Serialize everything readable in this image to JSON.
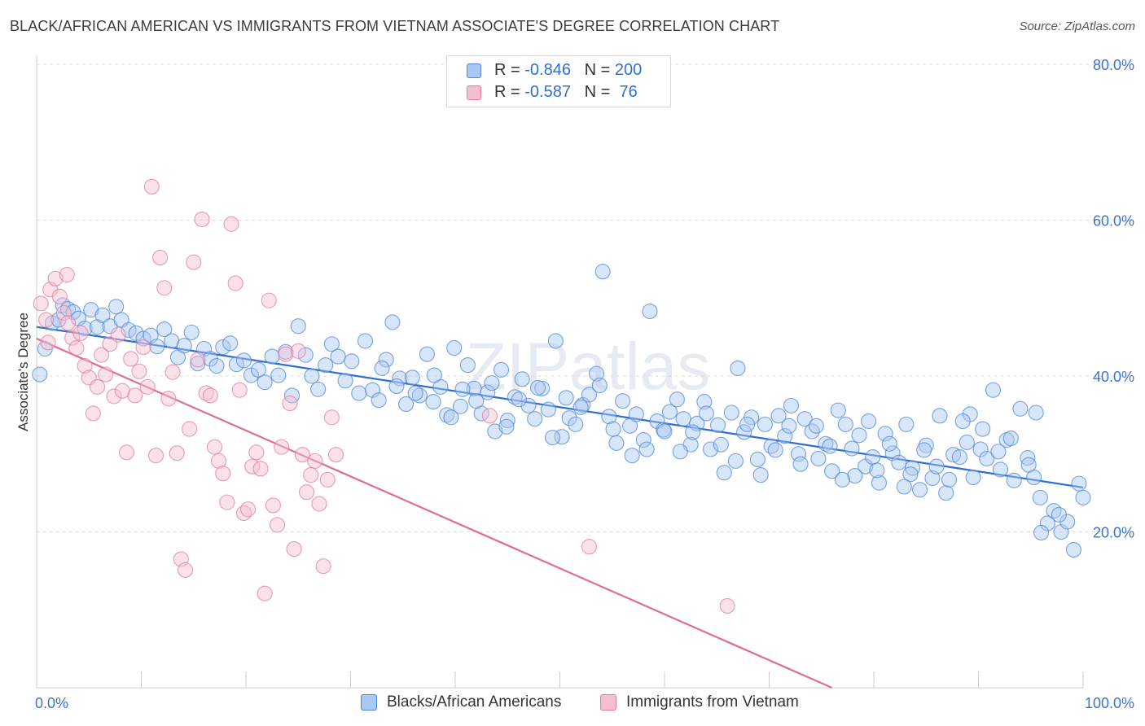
{
  "header": {
    "title": "BLACK/AFRICAN AMERICAN VS IMMIGRANTS FROM VIETNAM ASSOCIATE'S DEGREE CORRELATION CHART",
    "source": "Source: ZipAtlas.com"
  },
  "watermark": "ZIPatlas",
  "legend": {
    "rows": [
      {
        "r_label": "R = ",
        "r_value": "-0.846",
        "n_label": "N = ",
        "n_value": "200"
      },
      {
        "r_label": "R = ",
        "r_value": "-0.587",
        "n_label": "N = ",
        "n_value": " 76"
      }
    ]
  },
  "colors": {
    "blue": "#4f86d8",
    "blue_fill": "#a9c8f2",
    "blue_line": "#2f6fcf",
    "pink": "#e27c9c",
    "pink_fill": "#f6bfd0",
    "pink_line": "#e06c94",
    "tick_label": "#3d73cc",
    "grid": "#dddddd"
  },
  "chart_data": {
    "type": "scatter",
    "title": "BLACK/AFRICAN AMERICAN VS IMMIGRANTS FROM VIETNAM ASSOCIATE'S DEGREE CORRELATION CHART",
    "xlabel": "",
    "ylabel": "Associate's Degree",
    "xlim": [
      0,
      100
    ],
    "ylim": [
      0,
      80
    ],
    "x_tick_labels": [
      "0.0%",
      "100.0%"
    ],
    "y_ticks": [
      20,
      40,
      60,
      80
    ],
    "y_tick_labels": [
      "20.0%",
      "40.0%",
      "60.0%",
      "80.0%"
    ],
    "grid": true,
    "legend_position": "top-center",
    "series": [
      {
        "name": "Blacks/African Americans",
        "color": "#4f86d8",
        "trend": {
          "x": [
            0,
            100
          ],
          "y": [
            46.3,
            25.7
          ]
        },
        "points": [
          [
            0.3,
            40.2
          ],
          [
            0.8,
            43.5
          ],
          [
            1.5,
            46.8
          ],
          [
            2.1,
            47.2
          ],
          [
            2.5,
            49.1
          ],
          [
            3.0,
            48.6
          ],
          [
            3.5,
            48.2
          ],
          [
            4.0,
            47.4
          ],
          [
            4.6,
            46.1
          ],
          [
            5.2,
            48.5
          ],
          [
            5.8,
            46.3
          ],
          [
            6.3,
            47.8
          ],
          [
            7.0,
            46.4
          ],
          [
            7.6,
            48.9
          ],
          [
            8.1,
            47.2
          ],
          [
            8.8,
            45.9
          ],
          [
            9.5,
            45.5
          ],
          [
            10.2,
            44.8
          ],
          [
            10.9,
            45.2
          ],
          [
            11.5,
            43.8
          ],
          [
            12.2,
            46.0
          ],
          [
            12.9,
            44.5
          ],
          [
            13.5,
            42.4
          ],
          [
            14.1,
            43.9
          ],
          [
            14.8,
            45.6
          ],
          [
            15.4,
            41.6
          ],
          [
            16.0,
            43.5
          ],
          [
            16.6,
            42.2
          ],
          [
            17.2,
            41.3
          ],
          [
            17.8,
            43.7
          ],
          [
            18.5,
            44.2
          ],
          [
            19.1,
            41.5
          ],
          [
            19.8,
            42.0
          ],
          [
            20.5,
            40.1
          ],
          [
            21.2,
            40.8
          ],
          [
            21.8,
            39.2
          ],
          [
            22.5,
            42.5
          ],
          [
            23.1,
            40.1
          ],
          [
            23.8,
            43.1
          ],
          [
            24.4,
            37.5
          ],
          [
            25.0,
            46.4
          ],
          [
            25.7,
            42.7
          ],
          [
            26.3,
            40.0
          ],
          [
            26.9,
            38.3
          ],
          [
            27.6,
            41.4
          ],
          [
            28.2,
            44.1
          ],
          [
            28.8,
            42.5
          ],
          [
            29.5,
            39.4
          ],
          [
            30.1,
            41.9
          ],
          [
            30.8,
            37.8
          ],
          [
            31.4,
            44.5
          ],
          [
            32.1,
            38.2
          ],
          [
            32.7,
            36.9
          ],
          [
            33.4,
            42.1
          ],
          [
            34.0,
            46.9
          ],
          [
            34.7,
            39.7
          ],
          [
            35.3,
            36.4
          ],
          [
            35.9,
            39.8
          ],
          [
            36.6,
            37.5
          ],
          [
            37.3,
            42.8
          ],
          [
            37.9,
            36.7
          ],
          [
            38.6,
            38.6
          ],
          [
            39.2,
            35.0
          ],
          [
            39.9,
            43.6
          ],
          [
            40.5,
            36.1
          ],
          [
            41.2,
            41.4
          ],
          [
            41.8,
            38.4
          ],
          [
            42.5,
            35.2
          ],
          [
            43.1,
            37.9
          ],
          [
            43.8,
            32.9
          ],
          [
            44.4,
            40.8
          ],
          [
            45.0,
            34.3
          ],
          [
            45.7,
            37.3
          ],
          [
            46.4,
            39.6
          ],
          [
            47.0,
            36.2
          ],
          [
            47.6,
            34.5
          ],
          [
            48.3,
            38.4
          ],
          [
            48.9,
            35.7
          ],
          [
            49.6,
            44.5
          ],
          [
            50.2,
            32.2
          ],
          [
            50.9,
            34.6
          ],
          [
            51.5,
            33.8
          ],
          [
            52.2,
            36.3
          ],
          [
            52.8,
            37.6
          ],
          [
            53.5,
            40.3
          ],
          [
            54.1,
            53.4
          ],
          [
            54.7,
            34.8
          ],
          [
            55.4,
            31.4
          ],
          [
            56.0,
            36.8
          ],
          [
            56.7,
            33.6
          ],
          [
            57.3,
            35.1
          ],
          [
            58.0,
            31.8
          ],
          [
            58.6,
            48.3
          ],
          [
            59.3,
            34.2
          ],
          [
            59.9,
            33.1
          ],
          [
            60.5,
            35.4
          ],
          [
            61.2,
            37.0
          ],
          [
            61.8,
            34.5
          ],
          [
            62.5,
            31.2
          ],
          [
            63.1,
            33.9
          ],
          [
            63.8,
            36.7
          ],
          [
            64.4,
            30.6
          ],
          [
            65.1,
            33.7
          ],
          [
            65.7,
            27.6
          ],
          [
            66.4,
            35.3
          ],
          [
            67.0,
            41.0
          ],
          [
            67.6,
            32.8
          ],
          [
            68.3,
            34.7
          ],
          [
            68.9,
            29.3
          ],
          [
            69.6,
            33.8
          ],
          [
            70.2,
            31.0
          ],
          [
            70.9,
            34.9
          ],
          [
            71.5,
            32.3
          ],
          [
            72.1,
            36.2
          ],
          [
            72.8,
            30.0
          ],
          [
            73.4,
            34.5
          ],
          [
            74.1,
            32.9
          ],
          [
            74.7,
            29.4
          ],
          [
            75.4,
            31.3
          ],
          [
            76.0,
            27.8
          ],
          [
            76.6,
            35.6
          ],
          [
            77.3,
            33.8
          ],
          [
            77.9,
            30.7
          ],
          [
            78.6,
            32.4
          ],
          [
            79.2,
            28.4
          ],
          [
            79.9,
            29.6
          ],
          [
            80.5,
            26.3
          ],
          [
            81.1,
            32.6
          ],
          [
            81.8,
            30.1
          ],
          [
            82.4,
            28.9
          ],
          [
            83.1,
            33.8
          ],
          [
            83.7,
            28.2
          ],
          [
            84.4,
            25.4
          ],
          [
            85.0,
            31.1
          ],
          [
            85.6,
            26.9
          ],
          [
            86.3,
            34.9
          ],
          [
            86.9,
            25.0
          ],
          [
            87.6,
            29.9
          ],
          [
            88.2,
            29.6
          ],
          [
            88.9,
            31.5
          ],
          [
            89.5,
            27.0
          ],
          [
            90.2,
            30.6
          ],
          [
            90.8,
            29.4
          ],
          [
            91.4,
            38.2
          ],
          [
            92.1,
            28.0
          ],
          [
            92.7,
            31.8
          ],
          [
            93.4,
            26.6
          ],
          [
            94.0,
            35.8
          ],
          [
            94.7,
            29.5
          ],
          [
            95.3,
            27.0
          ],
          [
            95.9,
            24.4
          ],
          [
            96.6,
            21.1
          ],
          [
            97.2,
            22.7
          ],
          [
            97.9,
            20.0
          ],
          [
            98.5,
            21.3
          ],
          [
            99.1,
            17.7
          ],
          [
            99.6,
            26.2
          ],
          [
            100.0,
            24.4
          ],
          [
            97.7,
            22.2
          ],
          [
            96.0,
            19.9
          ],
          [
            95.5,
            35.3
          ],
          [
            94.8,
            28.6
          ],
          [
            93.1,
            32.0
          ],
          [
            91.9,
            30.3
          ],
          [
            90.4,
            33.2
          ],
          [
            89.2,
            35.1
          ],
          [
            88.5,
            34.2
          ],
          [
            87.2,
            26.7
          ],
          [
            86.0,
            28.4
          ],
          [
            84.8,
            30.5
          ],
          [
            83.5,
            27.4
          ],
          [
            82.9,
            25.8
          ],
          [
            81.5,
            31.3
          ],
          [
            80.3,
            27.9
          ],
          [
            79.5,
            34.2
          ],
          [
            78.2,
            27.2
          ],
          [
            77.0,
            26.7
          ],
          [
            75.8,
            31.0
          ],
          [
            74.5,
            33.6
          ],
          [
            73.0,
            28.7
          ],
          [
            71.9,
            33.6
          ],
          [
            70.6,
            30.5
          ],
          [
            69.2,
            27.3
          ],
          [
            67.9,
            33.8
          ],
          [
            66.8,
            29.1
          ],
          [
            65.4,
            31.2
          ],
          [
            64.0,
            35.2
          ],
          [
            62.7,
            32.8
          ],
          [
            61.5,
            30.3
          ],
          [
            60.0,
            32.9
          ],
          [
            58.3,
            30.6
          ],
          [
            56.9,
            29.8
          ],
          [
            55.1,
            33.2
          ],
          [
            53.8,
            38.8
          ],
          [
            52.0,
            36.0
          ],
          [
            50.6,
            37.2
          ],
          [
            49.3,
            32.1
          ],
          [
            47.9,
            38.5
          ],
          [
            46.1,
            37.0
          ],
          [
            44.9,
            33.5
          ],
          [
            43.5,
            39.1
          ],
          [
            42.0,
            36.8
          ],
          [
            40.7,
            38.3
          ],
          [
            39.6,
            34.7
          ],
          [
            38.0,
            40.1
          ],
          [
            36.2,
            37.8
          ],
          [
            34.4,
            38.7
          ],
          [
            33.0,
            41.0
          ]
        ]
      },
      {
        "name": "Immigrants from Vietnam",
        "color": "#e27c9c",
        "trend": {
          "x": [
            0,
            76
          ],
          "y": [
            44.8,
            0
          ]
        },
        "points": [
          [
            0.4,
            49.3
          ],
          [
            0.9,
            47.2
          ],
          [
            1.3,
            51.1
          ],
          [
            1.8,
            52.5
          ],
          [
            2.2,
            50.2
          ],
          [
            2.6,
            48.1
          ],
          [
            3.0,
            46.8
          ],
          [
            3.4,
            44.9
          ],
          [
            3.8,
            43.6
          ],
          [
            4.2,
            45.5
          ],
          [
            4.6,
            41.3
          ],
          [
            5.0,
            39.8
          ],
          [
            5.4,
            35.2
          ],
          [
            5.8,
            38.6
          ],
          [
            6.2,
            42.7
          ],
          [
            6.6,
            40.2
          ],
          [
            7.0,
            44.1
          ],
          [
            7.4,
            37.4
          ],
          [
            7.8,
            45.3
          ],
          [
            8.2,
            38.1
          ],
          [
            8.6,
            30.2
          ],
          [
            9.0,
            42.2
          ],
          [
            9.4,
            37.5
          ],
          [
            9.8,
            40.6
          ],
          [
            10.2,
            43.7
          ],
          [
            10.6,
            38.6
          ],
          [
            11.0,
            64.3
          ],
          [
            11.4,
            29.8
          ],
          [
            11.8,
            55.2
          ],
          [
            12.2,
            51.3
          ],
          [
            12.6,
            37.1
          ],
          [
            13.0,
            40.5
          ],
          [
            13.4,
            30.1
          ],
          [
            13.8,
            16.5
          ],
          [
            14.2,
            15.1
          ],
          [
            14.6,
            33.2
          ],
          [
            15.0,
            54.6
          ],
          [
            15.4,
            42.1
          ],
          [
            15.8,
            60.1
          ],
          [
            16.2,
            37.8
          ],
          [
            16.6,
            37.5
          ],
          [
            17.0,
            30.9
          ],
          [
            17.4,
            29.1
          ],
          [
            17.8,
            27.5
          ],
          [
            18.2,
            23.8
          ],
          [
            18.6,
            59.5
          ],
          [
            19.0,
            51.9
          ],
          [
            19.4,
            38.2
          ],
          [
            19.8,
            22.4
          ],
          [
            20.2,
            22.9
          ],
          [
            20.6,
            28.4
          ],
          [
            21.0,
            30.2
          ],
          [
            21.4,
            28.1
          ],
          [
            21.8,
            12.1
          ],
          [
            22.2,
            49.7
          ],
          [
            22.6,
            23.4
          ],
          [
            23.0,
            20.9
          ],
          [
            23.4,
            30.9
          ],
          [
            23.8,
            42.8
          ],
          [
            24.2,
            36.5
          ],
          [
            24.6,
            17.8
          ],
          [
            25.0,
            43.2
          ],
          [
            25.4,
            29.9
          ],
          [
            25.8,
            25.1
          ],
          [
            26.2,
            27.3
          ],
          [
            26.6,
            29.1
          ],
          [
            27.0,
            23.6
          ],
          [
            27.4,
            15.6
          ],
          [
            27.8,
            26.7
          ],
          [
            28.2,
            34.7
          ],
          [
            28.6,
            29.9
          ],
          [
            43.3,
            34.9
          ],
          [
            52.8,
            18.1
          ],
          [
            66.0,
            10.5
          ],
          [
            1.1,
            44.3
          ],
          [
            2.9,
            53.0
          ]
        ]
      }
    ]
  },
  "bottom_legend": {
    "items": [
      {
        "label": "Blacks/African Americans"
      },
      {
        "label": "Immigrants from Vietnam"
      }
    ]
  }
}
